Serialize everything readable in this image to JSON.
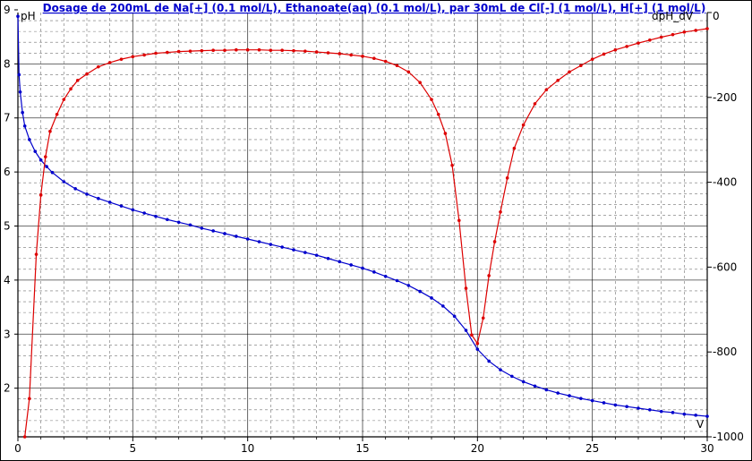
{
  "chart_data": {
    "type": "line",
    "title": "Dosage de 200mL de Na[+] (0.1 mol/L), Ethanoate(aq) (0.1 mol/L),  par 30mL  de Cl[-] (1 mol/L), H[+] (1 mol/L)",
    "xlabel": "V",
    "ylabel": "pH",
    "y2label": "dpH_dV",
    "xlim": [
      0,
      30
    ],
    "ylim": [
      1.1,
      8.95
    ],
    "y2lim": [
      -1000,
      0
    ],
    "x_ticks": [
      0,
      5,
      10,
      15,
      20,
      25,
      30
    ],
    "x_tick_labels": [
      "0",
      "5",
      "10",
      "15",
      "20",
      "25",
      "30"
    ],
    "y_ticks": [
      2,
      3,
      4,
      5,
      6,
      7,
      8,
      9
    ],
    "y_tick_labels": [
      "2",
      "3",
      "4",
      "5",
      "6",
      "7",
      "8",
      "9"
    ],
    "y2_ticks": [
      0,
      -200,
      -400,
      -600,
      -800,
      -1000
    ],
    "y2_tick_labels": [
      "0",
      "-200",
      "-400",
      "-600",
      "-800",
      "-1000"
    ],
    "grid": true,
    "colors": {
      "ph": "#0000cc",
      "derivative": "#dd0000",
      "grid": "#000000",
      "title": "#0000cc"
    },
    "series": [
      {
        "name": "pH",
        "axis": "left",
        "color": "#0000cc",
        "x": [
          0,
          0.05,
          0.1,
          0.2,
          0.3,
          0.5,
          0.75,
          1,
          1.25,
          1.5,
          2,
          2.5,
          3,
          3.5,
          4,
          4.5,
          5,
          5.5,
          6,
          6.5,
          7,
          7.5,
          8,
          8.5,
          9,
          9.5,
          10,
          10.5,
          11,
          11.5,
          12,
          12.5,
          13,
          13.5,
          14,
          14.5,
          15,
          15.5,
          16,
          16.5,
          17,
          17.5,
          18,
          18.5,
          19,
          19.5,
          20,
          20.5,
          21,
          21.5,
          22,
          22.5,
          23,
          23.5,
          24,
          24.5,
          25,
          25.5,
          26,
          26.5,
          27,
          27.5,
          28,
          28.5,
          29,
          29.5,
          30
        ],
        "values": [
          8.88,
          7.8,
          7.48,
          7.1,
          6.85,
          6.6,
          6.38,
          6.22,
          6.1,
          5.99,
          5.82,
          5.69,
          5.59,
          5.51,
          5.44,
          5.37,
          5.3,
          5.24,
          5.18,
          5.12,
          5.07,
          5.02,
          4.96,
          4.91,
          4.86,
          4.81,
          4.76,
          4.71,
          4.66,
          4.61,
          4.56,
          4.51,
          4.46,
          4.4,
          4.34,
          4.28,
          4.22,
          4.15,
          4.07,
          3.99,
          3.9,
          3.79,
          3.67,
          3.52,
          3.33,
          3.07,
          2.72,
          2.5,
          2.34,
          2.22,
          2.12,
          2.04,
          1.97,
          1.91,
          1.86,
          1.81,
          1.77,
          1.73,
          1.69,
          1.66,
          1.63,
          1.6,
          1.57,
          1.55,
          1.52,
          1.5,
          1.48
        ]
      },
      {
        "name": "dpH_dV",
        "axis": "right",
        "color": "#dd0000",
        "x": [
          0.3,
          0.5,
          0.8,
          1,
          1.2,
          1.4,
          1.7,
          2,
          2.3,
          2.6,
          3,
          3.5,
          4,
          4.5,
          5,
          5.5,
          6,
          6.5,
          7,
          7.5,
          8,
          8.5,
          9,
          9.5,
          10,
          10.5,
          11,
          11.5,
          12,
          12.5,
          13,
          13.5,
          14,
          14.5,
          15,
          15.5,
          16,
          16.5,
          17,
          17.5,
          18,
          18.3,
          18.6,
          18.9,
          19.2,
          19.5,
          19.75,
          20,
          20.25,
          20.5,
          20.75,
          21,
          21.3,
          21.6,
          22,
          22.5,
          23,
          23.5,
          24,
          24.5,
          25,
          25.5,
          26,
          26.5,
          27,
          27.5,
          28,
          28.5,
          29,
          29.5,
          30
        ],
        "values": [
          -1000,
          -910,
          -570,
          -430,
          -340,
          -280,
          -240,
          -205,
          -180,
          -160,
          -145,
          -128,
          -118,
          -110,
          -104,
          -100,
          -96,
          -94,
          -92,
          -91,
          -90,
          -89,
          -89,
          -88,
          -88,
          -88,
          -89,
          -89,
          -90,
          -91,
          -93,
          -95,
          -97,
          -100,
          -103,
          -108,
          -115,
          -125,
          -140,
          -165,
          -205,
          -240,
          -285,
          -360,
          -490,
          -650,
          -760,
          -780,
          -720,
          -620,
          -540,
          -470,
          -390,
          -320,
          -265,
          -215,
          -182,
          -160,
          -140,
          -125,
          -110,
          -98,
          -88,
          -80,
          -72,
          -65,
          -58,
          -52,
          -46,
          -42,
          -38
        ]
      }
    ]
  }
}
